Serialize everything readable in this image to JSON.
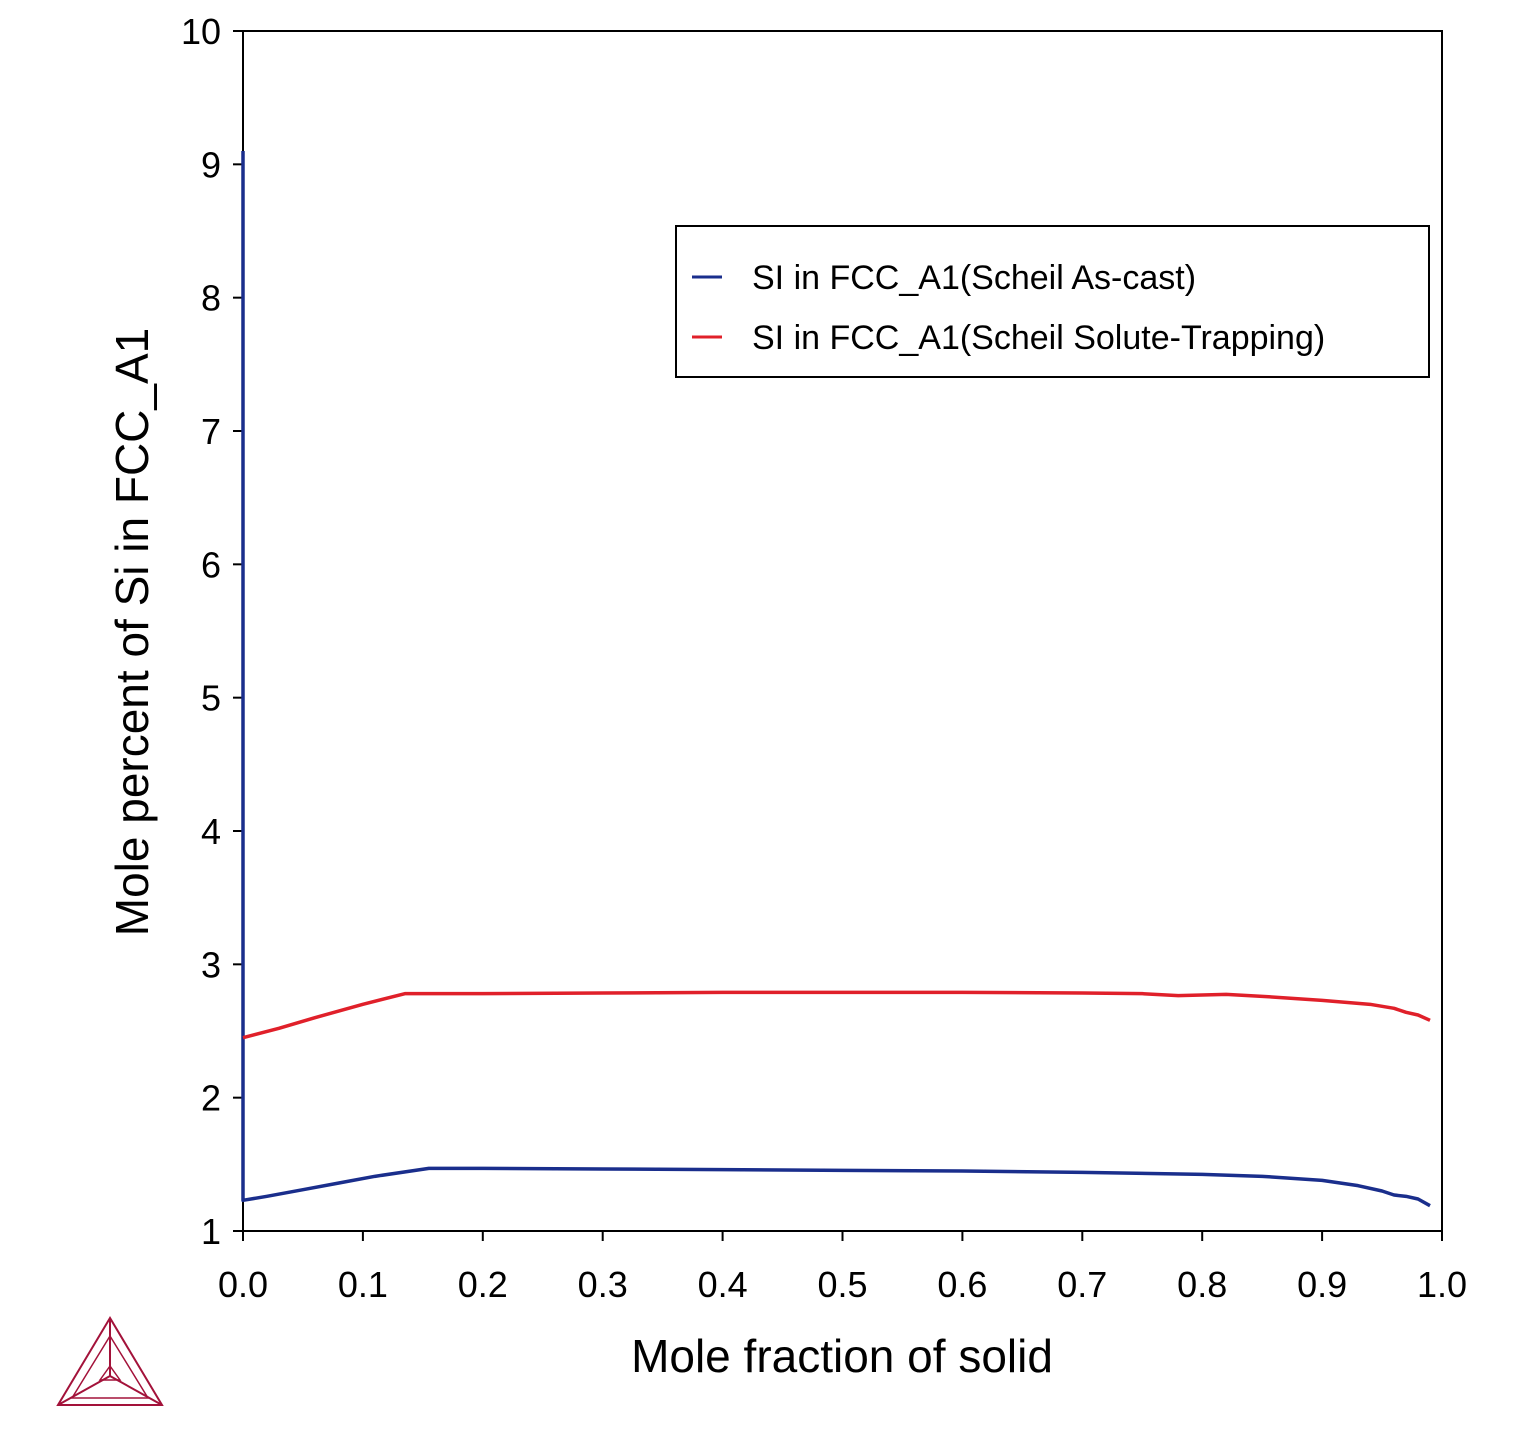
{
  "chart_data": {
    "type": "line",
    "xlabel": "Mole fraction of solid",
    "ylabel": "Mole percent of Si in FCC_A1",
    "xlim": [
      0,
      1
    ],
    "ylim": [
      1,
      10
    ],
    "xticks": [
      "0.0",
      "0.1",
      "0.2",
      "0.3",
      "0.4",
      "0.5",
      "0.6",
      "0.7",
      "0.8",
      "0.9",
      "1.0"
    ],
    "yticks": [
      "1",
      "2",
      "3",
      "4",
      "5",
      "6",
      "7",
      "8",
      "9",
      "10"
    ],
    "grid": false,
    "legend_position": "top-right",
    "series": [
      {
        "name": "SI in FCC_A1(Scheil As-cast)",
        "color": "#1a2e8c",
        "x": [
          0.0,
          0.0,
          0.0,
          0.02,
          0.05,
          0.08,
          0.11,
          0.155,
          0.2,
          0.3,
          0.4,
          0.5,
          0.6,
          0.7,
          0.8,
          0.85,
          0.9,
          0.93,
          0.95,
          0.96,
          0.97,
          0.98,
          0.99
        ],
        "y": [
          9.1,
          1.4,
          1.23,
          1.26,
          1.31,
          1.36,
          1.41,
          1.47,
          1.47,
          1.465,
          1.46,
          1.455,
          1.45,
          1.44,
          1.425,
          1.41,
          1.38,
          1.34,
          1.3,
          1.27,
          1.26,
          1.24,
          1.19
        ]
      },
      {
        "name": "SI in FCC_A1(Scheil Solute-Trapping)",
        "color": "#e0202a",
        "x": [
          0.0,
          0.03,
          0.06,
          0.1,
          0.135,
          0.2,
          0.3,
          0.4,
          0.5,
          0.6,
          0.7,
          0.75,
          0.78,
          0.82,
          0.85,
          0.9,
          0.94,
          0.96,
          0.97,
          0.98,
          0.99
        ],
        "y": [
          2.45,
          2.52,
          2.6,
          2.7,
          2.78,
          2.78,
          2.785,
          2.79,
          2.79,
          2.79,
          2.785,
          2.78,
          2.765,
          2.775,
          2.76,
          2.73,
          2.7,
          2.67,
          2.64,
          2.62,
          2.58
        ]
      }
    ]
  },
  "logo": {
    "name": "thermo-calc-logo",
    "color": "#a3123a"
  }
}
